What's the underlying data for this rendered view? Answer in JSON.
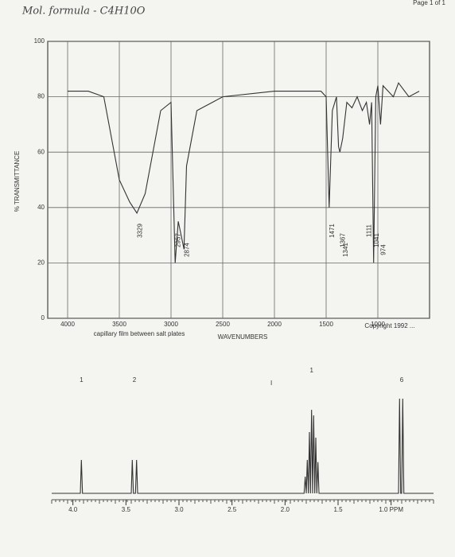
{
  "header": {
    "formula": "Mol. formula - C4H10O",
    "page": "Page 1 of 1"
  },
  "chart_data": [
    {
      "type": "line",
      "y_label": "% TRANSMITTANCE",
      "x_label": "WAVENUMBERS",
      "note": "capillary film between salt plates",
      "copyright": "Copyright 1992 ...",
      "xlim": [
        4000,
        500
      ],
      "ylim": [
        0,
        100
      ],
      "xticks": [
        4000,
        3500,
        3000,
        2500,
        2000,
        1500,
        1000
      ],
      "yticks": [
        0,
        20,
        40,
        60,
        80,
        100
      ],
      "grid": true,
      "x": [
        4000,
        3800,
        3650,
        3500,
        3400,
        3330,
        3250,
        3100,
        3000,
        2960,
        2930,
        2875,
        2850,
        2750,
        2600,
        2500,
        2000,
        1700,
        1550,
        1500,
        1471,
        1440,
        1400,
        1380,
        1367,
        1340,
        1300,
        1250,
        1200,
        1150,
        1111,
        1080,
        1060,
        1041,
        1020,
        1000,
        974,
        950,
        900,
        850,
        800,
        700,
        600
      ],
      "values": [
        82,
        82,
        80,
        50,
        42,
        38,
        45,
        75,
        78,
        20,
        35,
        25,
        55,
        75,
        78,
        80,
        82,
        82,
        82,
        80,
        40,
        75,
        80,
        62,
        60,
        65,
        78,
        76,
        80,
        75,
        78,
        70,
        78,
        20,
        80,
        84,
        70,
        84,
        82,
        80,
        85,
        80,
        82
      ],
      "color": "#333333",
      "annotations": [
        "3329",
        "2957",
        "2874",
        "1471",
        "1367",
        "1341",
        "1111",
        "1041",
        "974"
      ]
    },
    {
      "type": "line",
      "xlim": [
        4.2,
        0.6
      ],
      "ylim": [
        0,
        1
      ],
      "xticks": [
        {
          "value": 4,
          "label": "4.0"
        },
        3.5,
        {
          "value": 3,
          "label": "3.0"
        },
        2.5,
        {
          "value": 2,
          "label": "2.0"
        },
        1.5,
        {
          "value": 1,
          "label": "1.0 PPM"
        }
      ],
      "x": [
        4.2,
        3.93,
        3.92,
        3.91,
        3.45,
        3.44,
        3.43,
        3.41,
        3.4,
        3.39,
        1.82,
        1.81,
        1.8,
        1.79,
        1.78,
        1.77,
        1.76,
        1.75,
        1.74,
        1.73,
        1.72,
        1.71,
        1.7,
        1.69,
        1.68,
        0.93,
        0.92,
        0.91,
        0.9,
        0.89,
        0.88,
        0.6
      ],
      "values": [
        0,
        0,
        0.3,
        0,
        0,
        0.3,
        0,
        0,
        0.3,
        0,
        0,
        0.15,
        0,
        0.3,
        0,
        0.55,
        0,
        0.75,
        0,
        0.7,
        0,
        0.5,
        0,
        0.28,
        0,
        0,
        0.85,
        0,
        0,
        0.85,
        0,
        0
      ],
      "color": "#333333",
      "integrals": [
        {
          "x": 3.92,
          "label": "1"
        },
        {
          "x": 3.42,
          "label": "2"
        },
        {
          "x": 1.75,
          "label": "1"
        },
        {
          "x": 0.9,
          "label": "6"
        }
      ]
    }
  ]
}
